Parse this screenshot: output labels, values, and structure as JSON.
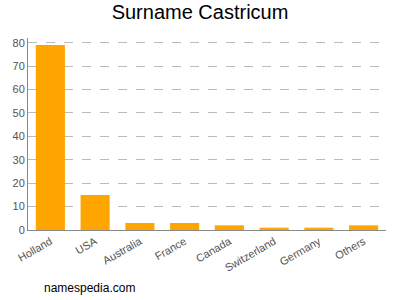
{
  "chart_data": {
    "type": "bar",
    "title": "Surname Castricum",
    "categories": [
      "Holland",
      "USA",
      "Australia",
      "France",
      "Canada",
      "Switzerland",
      "Germany",
      "Others"
    ],
    "values": [
      79,
      15,
      3,
      3,
      2,
      1,
      1,
      2
    ],
    "color": "#ffa500",
    "ylim": [
      0,
      82
    ],
    "yticks": [
      0,
      10,
      20,
      30,
      40,
      50,
      60,
      70,
      80
    ],
    "grid": true,
    "annotations": [
      "namespedia.com"
    ]
  }
}
